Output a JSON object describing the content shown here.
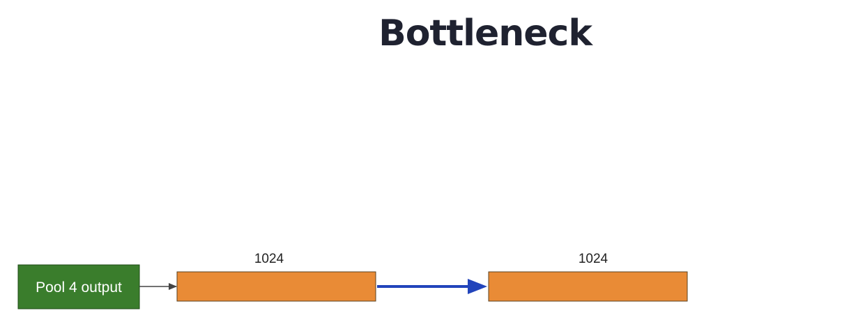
{
  "slide": {
    "title": "Bottleneck"
  },
  "diagram": {
    "input_box": {
      "label": "Pool 4 output",
      "fill": "#3a7d2c"
    },
    "layers": [
      {
        "size_label": "1024",
        "fill": "#e98b36"
      },
      {
        "size_label": "1024",
        "fill": "#e98b36"
      }
    ],
    "connectors": {
      "thin_arrow_color": "#444444",
      "thick_arrow_color": "#2244bb"
    }
  }
}
